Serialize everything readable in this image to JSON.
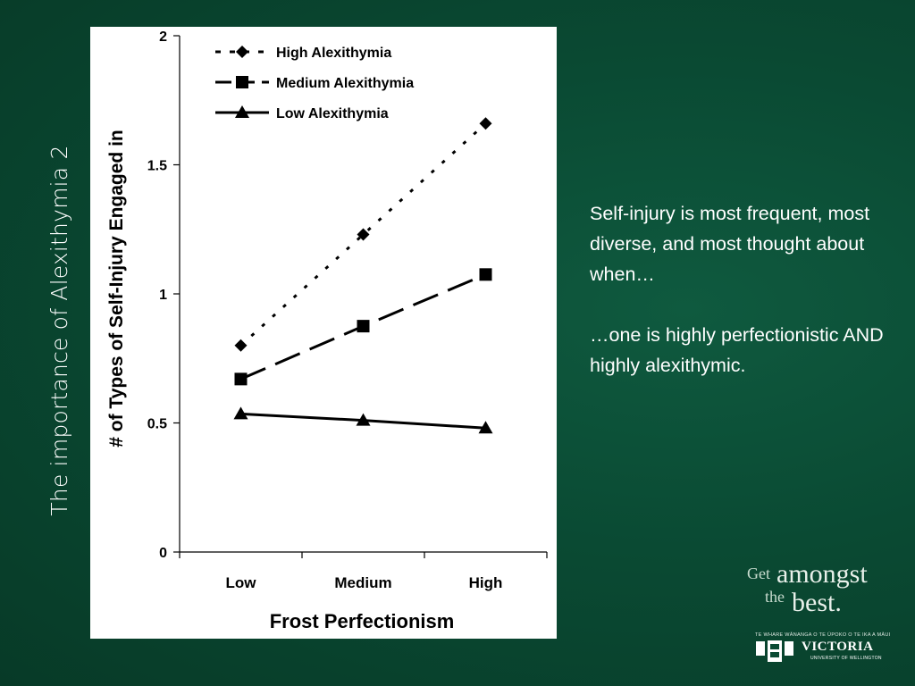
{
  "slide": {
    "side_title": "The importance of Alexithymia 2",
    "paragraphs": [
      "Self-injury is most frequent, most diverse, and most thought about when…",
      "…one is highly perfectionistic AND highly alexithymic."
    ]
  },
  "branding": {
    "get": "Get",
    "amongst": "amongst",
    "the": "the",
    "best": "best.",
    "motto": "TE WHARE WĀNANGA O TE ŪPOKO O TE IKA A MĀUI",
    "university": "VICTORIA",
    "university_sub": "UNIVERSITY OF WELLINGTON"
  },
  "chart_data": {
    "type": "line",
    "xlabel": "Frost Perfectionism",
    "ylabel": "# of Types of Self-Injury Engaged in",
    "categories": [
      "Low",
      "Medium",
      "High"
    ],
    "ylim": [
      0,
      2
    ],
    "yticks": [
      0,
      0.5,
      1,
      1.5,
      2
    ],
    "ytick_labels": [
      "0",
      "0.5",
      "1",
      "1.5",
      "2"
    ],
    "grid": false,
    "legend_position": "top-left",
    "series": [
      {
        "name": "High  Alexithymia",
        "values": [
          0.8,
          1.23,
          1.66
        ],
        "marker": "diamond",
        "dash": "4,12"
      },
      {
        "name": "Medium  Alexithymia",
        "values": [
          0.67,
          0.875,
          1.075
        ],
        "marker": "square",
        "dash": "30,12"
      },
      {
        "name": "Low Alexithymia",
        "values": [
          0.535,
          0.51,
          0.48
        ],
        "marker": "triangle",
        "dash": ""
      }
    ],
    "colors": {
      "line": "#000000",
      "background": "#ffffff"
    }
  }
}
